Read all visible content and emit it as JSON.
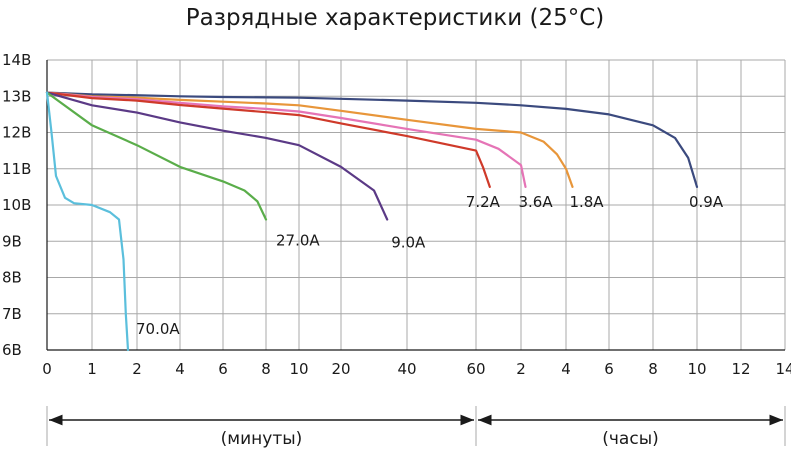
{
  "chart_data": {
    "type": "line",
    "title": "Разрядные характеристики (25°C)",
    "y_ticks": [
      "14В",
      "13В",
      "12В",
      "11В",
      "10В",
      "9В",
      "8В",
      "7В",
      "6В"
    ],
    "ylim": [
      6,
      14
    ],
    "x_ticks": [
      "0",
      "1",
      "2",
      "4",
      "6",
      "8",
      "10",
      "20",
      "40",
      "60",
      "2",
      "4",
      "6",
      "8",
      "10",
      "12",
      "14"
    ],
    "x_ranges": [
      {
        "label": "(минуты)",
        "from_tick": 0,
        "to_tick": 9
      },
      {
        "label": "(часы)",
        "from_tick": 9,
        "to_tick": 16
      }
    ],
    "grid": true,
    "series": [
      {
        "name": "0.9A",
        "color": "#3b4a7e",
        "x": [
          0,
          1,
          2,
          4,
          6,
          10,
          20,
          40,
          60,
          2,
          4,
          6,
          8,
          9,
          9.6,
          10
        ],
        "x_unit": [
          "min",
          "min",
          "min",
          "min",
          "min",
          "min",
          "min",
          "min",
          "min",
          "h",
          "h",
          "h",
          "h",
          "h",
          "h",
          "h"
        ],
        "values": [
          13.1,
          13.05,
          13.03,
          13.0,
          12.98,
          12.96,
          12.93,
          12.88,
          12.82,
          12.75,
          12.65,
          12.5,
          12.2,
          11.85,
          11.3,
          10.5
        ]
      },
      {
        "name": "1.8A",
        "color": "#e8963a",
        "x": [
          0,
          1,
          2,
          4,
          6,
          8,
          10,
          20,
          40,
          60,
          2,
          3,
          3.6,
          4,
          4.3
        ],
        "x_unit": [
          "min",
          "min",
          "min",
          "min",
          "min",
          "min",
          "min",
          "min",
          "min",
          "min",
          "h",
          "h",
          "h",
          "h",
          "h"
        ],
        "values": [
          13.1,
          13.0,
          12.96,
          12.9,
          12.85,
          12.8,
          12.75,
          12.6,
          12.35,
          12.1,
          12.0,
          11.75,
          11.4,
          11.0,
          10.5
        ]
      },
      {
        "name": "3.6A",
        "color": "#e574b6",
        "x": [
          0,
          1,
          2,
          4,
          6,
          8,
          10,
          20,
          40,
          60,
          1.5,
          2,
          2.2
        ],
        "x_unit": [
          "min",
          "min",
          "min",
          "min",
          "min",
          "min",
          "min",
          "min",
          "min",
          "min",
          "h",
          "h",
          "h"
        ],
        "values": [
          13.1,
          12.98,
          12.92,
          12.82,
          12.72,
          12.65,
          12.58,
          12.4,
          12.1,
          11.8,
          11.55,
          11.1,
          10.5
        ]
      },
      {
        "name": "7.2A",
        "color": "#cf3a2a",
        "x": [
          0,
          1,
          2,
          4,
          6,
          8,
          10,
          20,
          40,
          60,
          62,
          64
        ],
        "x_unit": [
          "min",
          "min",
          "min",
          "min",
          "min",
          "min",
          "min",
          "min",
          "min",
          "min",
          "min",
          "min"
        ],
        "values": [
          13.1,
          12.95,
          12.88,
          12.76,
          12.66,
          12.56,
          12.48,
          12.25,
          11.9,
          11.5,
          11.05,
          10.5
        ]
      },
      {
        "name": "9.0A",
        "color": "#5b3a86",
        "x": [
          0,
          1,
          2,
          4,
          6,
          8,
          10,
          20,
          30,
          34
        ],
        "x_unit": [
          "min",
          "min",
          "min",
          "min",
          "min",
          "min",
          "min",
          "min",
          "min",
          "min"
        ],
        "values": [
          13.1,
          12.75,
          12.55,
          12.28,
          12.05,
          11.85,
          11.65,
          11.05,
          10.4,
          9.6
        ]
      },
      {
        "name": "27.0A",
        "color": "#5aad4a",
        "x": [
          0,
          1,
          2,
          4,
          6,
          7,
          7.6,
          8
        ],
        "x_unit": [
          "min",
          "min",
          "min",
          "min",
          "min",
          "min",
          "min",
          "min"
        ],
        "values": [
          13.1,
          12.2,
          11.65,
          11.05,
          10.65,
          10.4,
          10.1,
          9.6
        ]
      },
      {
        "name": "70.0A",
        "color": "#5bbfdc",
        "x": [
          0,
          0.1,
          0.2,
          0.4,
          0.6,
          1,
          1.4,
          1.6,
          1.7,
          1.75,
          1.8
        ],
        "x_unit": [
          "min",
          "min",
          "min",
          "min",
          "min",
          "min",
          "min",
          "min",
          "min",
          "min",
          "min"
        ],
        "values": [
          13.1,
          12.0,
          10.8,
          10.2,
          10.05,
          10.0,
          9.8,
          9.6,
          8.5,
          7.0,
          6.0
        ]
      }
    ]
  }
}
